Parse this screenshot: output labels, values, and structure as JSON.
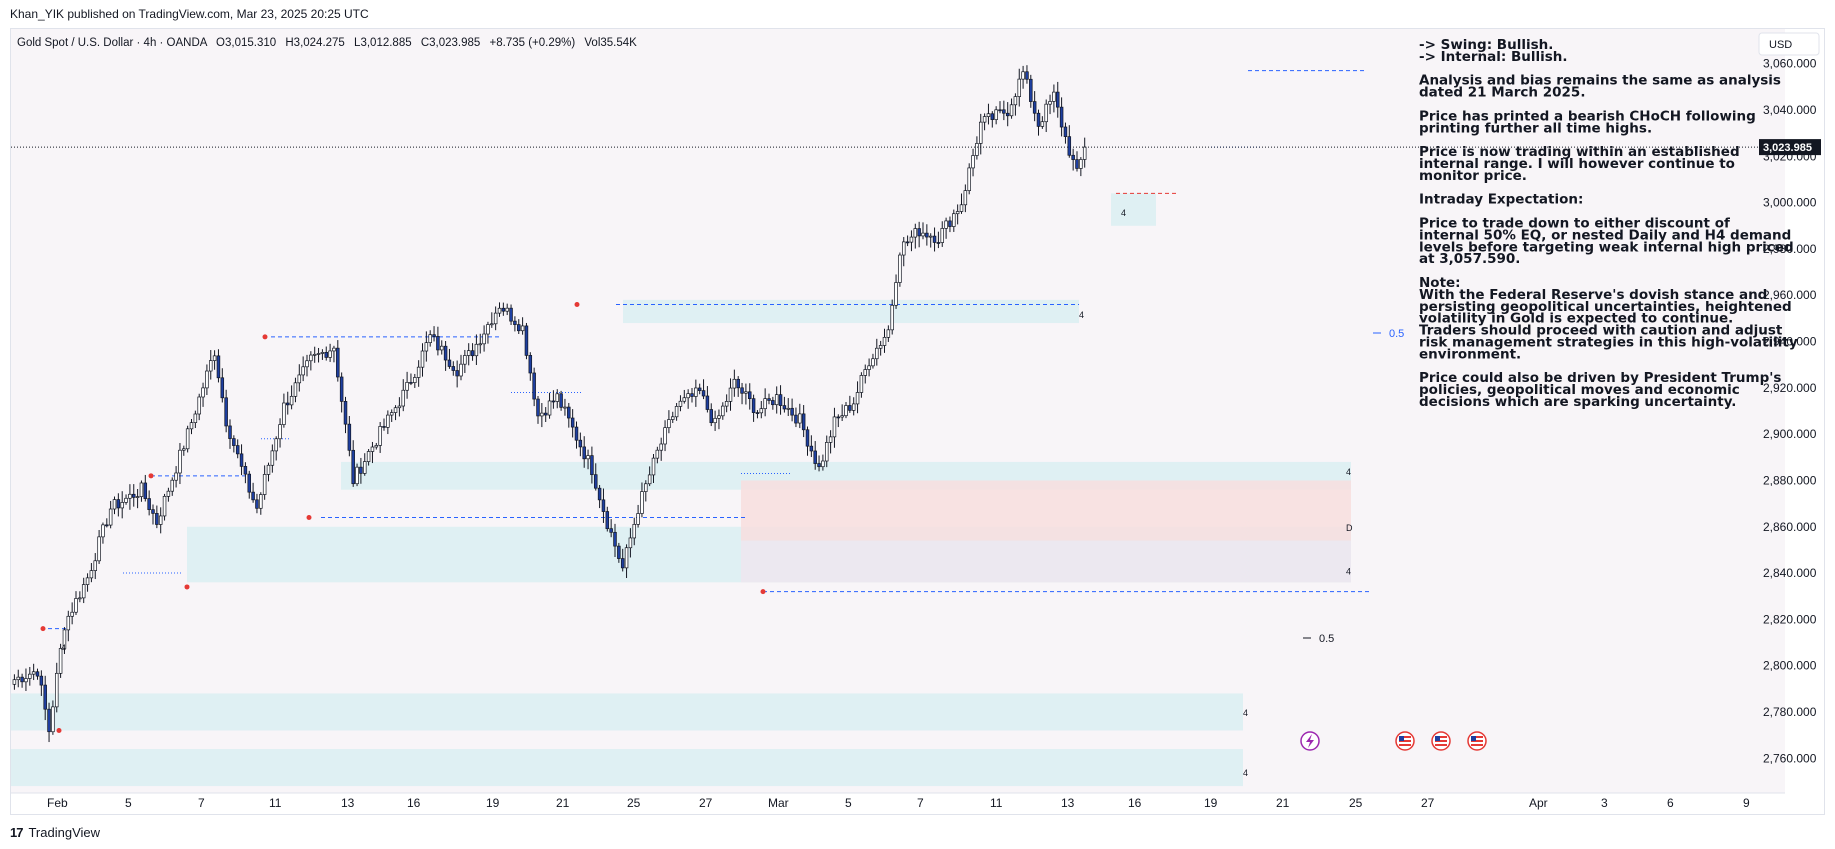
{
  "header": {
    "publisher": "Khan_YIK published on TradingView.com, Mar 23, 2025 20:25 UTC"
  },
  "legend": {
    "symbol": "Gold Spot / U.S. Dollar · 4h · OANDA",
    "open_label": "O",
    "open": "3,015.310",
    "high_label": "H",
    "high": "3,024.275",
    "low_label": "L",
    "low": "3,012.885",
    "close_label": "C",
    "close": "3,023.985",
    "change": "+8.735 (+0.29%)",
    "volume_label": "Vol",
    "volume": "35.54K"
  },
  "currency": "USD",
  "last_price": "3,023.985",
  "notes": [
    "-> Swing:  Bullish.",
    "-> Internal:  Bullish.",
    "",
    "Analysis and bias remains the same as analysis",
    "dated 21 March 2025.",
    "",
    "Price has printed a bearish CHoCH following",
    "printing further all time highs.",
    "",
    "Price is now trading within an established",
    "internal range.  I will however continue to",
    "monitor price.",
    "",
    "Intraday Expectation:",
    "",
    "Price to trade down to either discount of",
    "internal 50% EQ, or nested Daily and H4 demand",
    "levels before targeting weak internal high priced",
    "at 3,057.590.",
    "",
    "Note:",
    "With the Federal Reserve's dovish stance and",
    "persisting geopolitical uncertainties, heightened",
    "volatility in Gold is expected to continue.",
    "Traders should proceed with caution and adjust",
    "risk management strategies in this high-volatility",
    "environment.",
    "",
    "Price could also be driven by President Trump's",
    "policies, geopolitical moves and economic",
    "decisions which are sparking uncertainty."
  ],
  "annotations": {
    "eq_upper": "0.5",
    "eq_lower": "0.5",
    "zone_labels": [
      "4",
      "4",
      "D",
      "4",
      "4",
      "4",
      "4",
      "4"
    ]
  },
  "footer": {
    "brand": "TradingView"
  },
  "colors": {
    "candle_up": "#ffffff",
    "candle_down": "#1e3fa0",
    "outline": "#131722",
    "demand_zone": "#dbeef2",
    "supply_zone": "#f8dede",
    "level_line": "#2962ff",
    "swing_point": "#e53935",
    "chart_bg": "#f8f5f8"
  },
  "chart_data": {
    "type": "candlestick",
    "title": "Gold Spot / U.S. Dollar · 4h · OANDA",
    "xlabel": "",
    "ylabel": "",
    "ylim": [
      2745,
      3075
    ],
    "y_ticks": [
      2760,
      2780,
      2800,
      2820,
      2840,
      2860,
      2880,
      2900,
      2920,
      2940,
      2960,
      2980,
      3000,
      3020,
      3040,
      3060
    ],
    "y_tick_labels": [
      "2,760.000",
      "2,780.000",
      "2,800.000",
      "2,820.000",
      "2,840.000",
      "2,860.000",
      "2,880.000",
      "2,900.000",
      "2,920.000",
      "2,940.000",
      "2,960.000",
      "2,980.000",
      "3,000.000",
      "3,020.000",
      "3,040.000",
      "3,060.000"
    ],
    "x_tick_labels": [
      "Feb",
      "5",
      "7",
      "11",
      "13",
      "16",
      "19",
      "21",
      "25",
      "27",
      "Mar",
      "5",
      "7",
      "11",
      "13",
      "16",
      "19",
      "21",
      "25",
      "27",
      "Apr",
      "3",
      "6",
      "9"
    ],
    "last_price": 3023.985,
    "grid": false,
    "price_waypoints": [
      [
        0,
        2794
      ],
      [
        6,
        2798
      ],
      [
        9,
        2772
      ],
      [
        13,
        2818
      ],
      [
        19,
        2838
      ],
      [
        25,
        2868
      ],
      [
        33,
        2876
      ],
      [
        37,
        2862
      ],
      [
        45,
        2900
      ],
      [
        52,
        2936
      ],
      [
        55,
        2906
      ],
      [
        60,
        2880
      ],
      [
        63,
        2868
      ],
      [
        70,
        2912
      ],
      [
        77,
        2932
      ],
      [
        83,
        2938
      ],
      [
        88,
        2880
      ],
      [
        92,
        2892
      ],
      [
        102,
        2920
      ],
      [
        108,
        2942
      ],
      [
        115,
        2928
      ],
      [
        119,
        2936
      ],
      [
        126,
        2956
      ],
      [
        132,
        2946
      ],
      [
        136,
        2908
      ],
      [
        141,
        2916
      ],
      [
        150,
        2885
      ],
      [
        154,
        2862
      ],
      [
        158,
        2842
      ],
      [
        162,
        2868
      ],
      [
        167,
        2892
      ],
      [
        172,
        2912
      ],
      [
        178,
        2918
      ],
      [
        182,
        2904
      ],
      [
        187,
        2922
      ],
      [
        193,
        2910
      ],
      [
        198,
        2916
      ],
      [
        204,
        2906
      ],
      [
        209,
        2885
      ],
      [
        213,
        2905
      ],
      [
        218,
        2914
      ],
      [
        222,
        2932
      ],
      [
        227,
        2945
      ],
      [
        230,
        2980
      ],
      [
        235,
        2988
      ],
      [
        240,
        2985
      ],
      [
        246,
        3000
      ],
      [
        251,
        3034
      ],
      [
        258,
        3040
      ],
      [
        262,
        3056
      ],
      [
        266,
        3034
      ],
      [
        270,
        3046
      ],
      [
        273,
        3028
      ],
      [
        276,
        3012
      ],
      [
        278,
        3024
      ]
    ]
  }
}
